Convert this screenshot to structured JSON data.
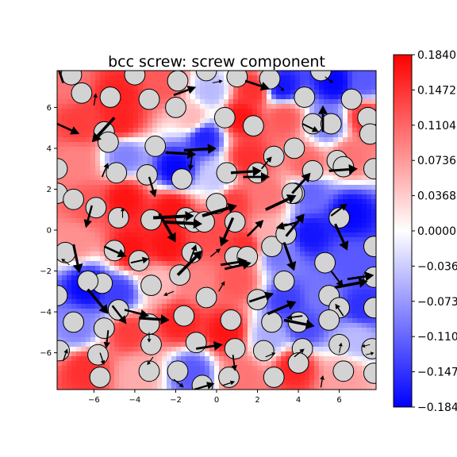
{
  "chart_data": {
    "type": "heatmap",
    "title": "bcc screw: screw component",
    "xlabel": "",
    "ylabel": "",
    "xlim": [
      -7.8,
      7.8
    ],
    "ylim": [
      -7.8,
      7.8
    ],
    "x_ticks": [
      -6,
      -4,
      -2,
      0,
      2,
      4,
      6
    ],
    "y_ticks": [
      -6,
      -4,
      -2,
      0,
      2,
      4,
      6
    ],
    "x_tick_labels": [
      "−6",
      "−4",
      "−2",
      "0",
      "2",
      "4",
      "6"
    ],
    "y_tick_labels": [
      "−6",
      "−4",
      "−2",
      "0",
      "2",
      "4",
      "6"
    ],
    "grid": false,
    "colormap": "bwr",
    "colorbar": {
      "vmin": -0.184,
      "vmax": 0.184,
      "ticks": [
        0.184,
        0.1472,
        0.1104,
        0.0736,
        0.0368,
        0.0,
        -0.0368,
        -0.0736,
        -0.1104,
        -0.1472,
        -0.184
      ],
      "tick_labels": [
        "0.1840",
        "0.1472",
        "0.1104",
        "0.0736",
        "0.0368",
        "0.0000",
        "−0.0368",
        "−0.0736",
        "−0.1104",
        "−0.1472",
        "−0.1840"
      ]
    },
    "atom_style": {
      "fill": "#d3d3d3",
      "stroke": "#000000",
      "radius": 0.5
    },
    "colors": {
      "arrow": "#000000",
      "neg": "#0000ff",
      "mid": "#ffffff",
      "pos": "#ff0000"
    },
    "field_samples": [
      [
        -7.3,
        7.2,
        0.1
      ],
      [
        -4.8,
        6.5,
        0.16
      ],
      [
        -2.5,
        7.2,
        0.12
      ],
      [
        -0.3,
        6.8,
        -0.05
      ],
      [
        1.8,
        6.8,
        0.15
      ],
      [
        3.2,
        7.0,
        -0.17
      ],
      [
        5.8,
        7.2,
        -0.18
      ],
      [
        7.2,
        7.3,
        -0.12
      ],
      [
        -6.7,
        5.2,
        0.14
      ],
      [
        -4.7,
        5.3,
        0.16
      ],
      [
        -1.2,
        5.5,
        0.05
      ],
      [
        1.2,
        5.5,
        0.17
      ],
      [
        3.3,
        5.5,
        0.12
      ],
      [
        5.5,
        5.2,
        -0.1
      ],
      [
        7.2,
        5.5,
        0.15
      ],
      [
        -6.9,
        3.3,
        0.09
      ],
      [
        -4.5,
        3.6,
        -0.09
      ],
      [
        -2.0,
        3.0,
        -0.18
      ],
      [
        -0.6,
        4.5,
        -0.16
      ],
      [
        1.5,
        3.5,
        0.15
      ],
      [
        4.4,
        3.2,
        0.11
      ],
      [
        6.5,
        3.6,
        0.1
      ],
      [
        -6.3,
        1.2,
        0.12
      ],
      [
        -4.5,
        1.5,
        0.17
      ],
      [
        -2.2,
        1.0,
        0.17
      ],
      [
        0.8,
        1.3,
        0.14
      ],
      [
        2.5,
        1.6,
        0.1
      ],
      [
        4.6,
        1.8,
        -0.11
      ],
      [
        6.5,
        0.8,
        -0.18
      ],
      [
        -6.9,
        -0.5,
        0.08
      ],
      [
        -4.2,
        -1.0,
        0.17
      ],
      [
        -2.4,
        -0.8,
        0.17
      ],
      [
        -0.4,
        -0.2,
        0.13
      ],
      [
        1.4,
        -0.8,
        0.15
      ],
      [
        3.0,
        -1.2,
        -0.1
      ],
      [
        4.6,
        -0.2,
        -0.17
      ],
      [
        6.6,
        -1.5,
        -0.12
      ],
      [
        -6.3,
        -2.8,
        -0.18
      ],
      [
        -4.8,
        -3.1,
        -0.14
      ],
      [
        -2.8,
        -2.5,
        0.05
      ],
      [
        -0.9,
        -2.6,
        0.09
      ],
      [
        1.0,
        -2.5,
        0.12
      ],
      [
        3.4,
        -3.5,
        -0.14
      ],
      [
        5.2,
        -3.2,
        -0.1
      ],
      [
        7.1,
        -3.8,
        -0.15
      ],
      [
        -6.8,
        -4.8,
        -0.09
      ],
      [
        -4.3,
        -5.0,
        0.14
      ],
      [
        -1.8,
        -4.5,
        0.16
      ],
      [
        0.5,
        -5.0,
        0.17
      ],
      [
        2.6,
        -5.2,
        -0.06
      ],
      [
        4.3,
        -4.8,
        -0.13
      ],
      [
        6.8,
        -5.3,
        -0.05
      ],
      [
        -6.4,
        -6.8,
        0.15
      ],
      [
        -3.8,
        -7.0,
        0.06
      ],
      [
        -1.2,
        -7.0,
        -0.12
      ],
      [
        1.2,
        -7.2,
        0.1
      ],
      [
        3.8,
        -6.7,
        0.16
      ],
      [
        6.3,
        -7.2,
        0.07
      ],
      [
        0.0,
        2.5,
        -0.04
      ],
      [
        2.5,
        -0.2,
        0.06
      ]
    ],
    "atoms": [
      [
        -7.1,
        7.6
      ],
      [
        -4.0,
        7.6
      ],
      [
        -1.9,
        7.3
      ],
      [
        -0.5,
        7.8
      ],
      [
        1.0,
        7.5
      ],
      [
        2.6,
        7.4
      ],
      [
        5.1,
        7.8
      ],
      [
        -6.6,
        6.7
      ],
      [
        -5.2,
        6.5
      ],
      [
        -3.3,
        6.4
      ],
      [
        -2.0,
        6.0
      ],
      [
        4.3,
        6.5
      ],
      [
        6.6,
        6.4
      ],
      [
        7.4,
        5.5
      ],
      [
        -5.5,
        4.8
      ],
      [
        -5.3,
        4.3
      ],
      [
        -3.0,
        4.1
      ],
      [
        0.4,
        5.5
      ],
      [
        1.8,
        5.1
      ],
      [
        3.8,
        4.0
      ],
      [
        4.7,
        5.2
      ],
      [
        5.6,
        5.2
      ],
      [
        7.5,
        4.7
      ],
      [
        -7.8,
        3.0
      ],
      [
        -4.9,
        2.8
      ],
      [
        -3.4,
        2.7
      ],
      [
        -1.7,
        2.5
      ],
      [
        0.5,
        2.8
      ],
      [
        2.0,
        2.8
      ],
      [
        2.8,
        3.6
      ],
      [
        4.7,
        2.9
      ],
      [
        5.9,
        3.4
      ],
      [
        6.2,
        3.1
      ],
      [
        7.7,
        3.0
      ],
      [
        -7.8,
        1.8
      ],
      [
        -7.0,
        1.5
      ],
      [
        -5.9,
        1.1
      ],
      [
        -4.8,
        0.6
      ],
      [
        -3.2,
        0.5
      ],
      [
        -1.5,
        0.6
      ],
      [
        -1.1,
        0.4
      ],
      [
        -0.6,
        0.4
      ],
      [
        0.0,
        1.3
      ],
      [
        0.9,
        0.4
      ],
      [
        2.7,
        -0.8
      ],
      [
        3.4,
        -0.2
      ],
      [
        3.8,
        1.8
      ],
      [
        3.7,
        1.8
      ],
      [
        6.0,
        0.6
      ],
      [
        7.7,
        -0.8
      ],
      [
        -7.4,
        -1.1
      ],
      [
        -5.0,
        -1.0
      ],
      [
        -3.8,
        -1.5
      ],
      [
        -1.2,
        -1.1
      ],
      [
        -1.8,
        -2.2
      ],
      [
        -3.2,
        -2.7
      ],
      [
        -5.6,
        -2.6
      ],
      [
        -6.3,
        -2.5
      ],
      [
        0.9,
        -1.3
      ],
      [
        1.5,
        -1.3
      ],
      [
        5.3,
        -1.6
      ],
      [
        7.7,
        -2.3
      ],
      [
        -7.8,
        -3.2
      ],
      [
        -4.8,
        -3.9
      ],
      [
        -7.0,
        -4.5
      ],
      [
        -1.6,
        -4.2
      ],
      [
        -0.5,
        -3.3
      ],
      [
        0.7,
        -4.4
      ],
      [
        2.0,
        -3.4
      ],
      [
        3.3,
        -2.5
      ],
      [
        5.5,
        -3.2
      ],
      [
        6.0,
        -3.8
      ],
      [
        2.7,
        -4.5
      ],
      [
        4.0,
        -4.5
      ],
      [
        5.5,
        -4.4
      ],
      [
        7.7,
        -3.8
      ],
      [
        -5.5,
        -4.8
      ],
      [
        -3.3,
        -4.6
      ],
      [
        -3.2,
        -5.6
      ],
      [
        -1.0,
        -5.5
      ],
      [
        0.9,
        -5.8
      ],
      [
        2.3,
        -5.9
      ],
      [
        4.2,
        -5.8
      ],
      [
        6.0,
        -5.6
      ],
      [
        7.6,
        -5.8
      ],
      [
        -5.8,
        -6.1
      ],
      [
        -7.7,
        -5.9
      ],
      [
        -3.3,
        -6.9
      ],
      [
        -1.9,
        -6.9
      ],
      [
        -0.7,
        -7.6
      ],
      [
        0.6,
        -7.2
      ],
      [
        2.8,
        -7.2
      ],
      [
        4.0,
        -6.5
      ],
      [
        6.2,
        -6.9
      ],
      [
        -5.7,
        -7.2
      ],
      [
        7.7,
        -7.0
      ]
    ],
    "arrows": [
      [
        -7.5,
        7.2,
        -0.4,
        1.2
      ],
      [
        -6.0,
        6.1,
        0.1,
        0.6
      ],
      [
        -2.1,
        6.6,
        1.1,
        0.4
      ],
      [
        -0.2,
        7.2,
        0.5,
        0.1
      ],
      [
        1.4,
        7.3,
        1.2,
        -0.4
      ],
      [
        3.0,
        7.1,
        0.3,
        -0.3
      ],
      [
        5.3,
        7.5,
        0.4,
        -0.3
      ],
      [
        -7.8,
        5.2,
        1.1,
        -0.5
      ],
      [
        -5.0,
        5.5,
        -1.1,
        -1.2
      ],
      [
        -2.5,
        3.8,
        1.5,
        -0.1
      ],
      [
        -1.6,
        3.9,
        1.6,
        0.1
      ],
      [
        -1.2,
        3.7,
        -0.1,
        -0.8
      ],
      [
        0.7,
        2.8,
        1.5,
        0.1
      ],
      [
        1.3,
        2.6,
        1.3,
        0.0
      ],
      [
        2.2,
        3.0,
        0.5,
        0.6
      ],
      [
        3.7,
        1.8,
        0.9,
        1.0
      ],
      [
        5.2,
        4.8,
        0.0,
        1.3
      ],
      [
        5.5,
        2.9,
        1.4,
        0.1
      ],
      [
        4.2,
        5.2,
        0.8,
        -0.4
      ],
      [
        -5.6,
        2.6,
        0.3,
        0.7
      ],
      [
        -3.3,
        2.6,
        0.3,
        -1.0
      ],
      [
        -2.8,
        0.8,
        0.8,
        -1.4
      ],
      [
        -3.1,
        0.6,
        2.0,
        0.1
      ],
      [
        -2.6,
        0.4,
        1.9,
        -0.1
      ],
      [
        -0.7,
        0.7,
        1.7,
        0.5
      ],
      [
        0.8,
        0.6,
        -0.6,
        -1.4
      ],
      [
        1.5,
        -0.3,
        0.8,
        0.8
      ],
      [
        2.4,
        1.0,
        1.5,
        0.7
      ],
      [
        4.0,
        0.4,
        -1.1,
        -0.3
      ],
      [
        5.6,
        0.7,
        0.8,
        0.6
      ],
      [
        5.8,
        0.3,
        0.6,
        -1.3
      ],
      [
        -6.1,
        1.2,
        -0.3,
        -1.1
      ],
      [
        -4.6,
        0.6,
        0.0,
        0.5
      ],
      [
        -7.0,
        -0.7,
        0.3,
        -1.4
      ],
      [
        -5.5,
        -0.8,
        1.1,
        -0.5
      ],
      [
        -4.2,
        -1.6,
        0.9,
        0.2
      ],
      [
        -1.9,
        -2.2,
        1.2,
        1.2
      ],
      [
        -1.3,
        -1.5,
        0.3,
        0.8
      ],
      [
        -0.3,
        -1.3,
        0.5,
        0.4
      ],
      [
        0.2,
        -1.7,
        1.3,
        0.2
      ],
      [
        0.4,
        -1.9,
        1.3,
        0.3
      ],
      [
        3.3,
        -0.6,
        0.5,
        -1.4
      ],
      [
        3.4,
        -0.3,
        0.9,
        1.1
      ],
      [
        5.6,
        -2.0,
        0.6,
        -0.8
      ],
      [
        5.8,
        -2.8,
        1.6,
        0.3
      ],
      [
        6.4,
        -2.4,
        1.3,
        0.2
      ],
      [
        -7.2,
        -1.7,
        -0.4,
        0.3
      ],
      [
        -6.3,
        -2.9,
        1.0,
        -1.2
      ],
      [
        -5.1,
        -3.7,
        0.7,
        -0.9
      ],
      [
        -4.5,
        -3.9,
        1.2,
        -0.3
      ],
      [
        -3.8,
        -4.3,
        1.5,
        -0.1
      ],
      [
        -3.3,
        -5.0,
        0.0,
        -0.5
      ],
      [
        -2.1,
        -3.0,
        -0.5,
        -0.2
      ],
      [
        0.1,
        -3.0,
        0.3,
        0.5
      ],
      [
        1.6,
        -3.5,
        1.2,
        0.4
      ],
      [
        2.5,
        -4.1,
        1.4,
        0.6
      ],
      [
        3.3,
        -4.4,
        1.5,
        -0.3
      ],
      [
        4.2,
        -4.2,
        -0.8,
        -0.1
      ],
      [
        6.2,
        -4.2,
        -0.4,
        0.6
      ],
      [
        -5.3,
        -4.9,
        -0.1,
        -0.9
      ],
      [
        -5.7,
        -6.0,
        0.2,
        -0.6
      ],
      [
        -7.5,
        -6.4,
        0.2,
        0.6
      ],
      [
        -3.1,
        -6.2,
        -0.3,
        -0.4
      ],
      [
        -1.0,
        -5.8,
        1.3,
        0.2
      ],
      [
        0.8,
        -6.1,
        0.1,
        -0.8
      ],
      [
        2.4,
        -6.2,
        0.5,
        0.2
      ],
      [
        3.8,
        -6.2,
        0.5,
        0.4
      ],
      [
        6.0,
        -6.0,
        0.1,
        0.5
      ],
      [
        7.3,
        -6.1,
        0.4,
        0.1
      ],
      [
        -2.1,
        -7.3,
        0.5,
        -0.4
      ],
      [
        -1.1,
        -7.8,
        1.0,
        0.3
      ],
      [
        0.3,
        -7.6,
        0.6,
        0.2
      ],
      [
        5.1,
        -7.7,
        0.1,
        0.6
      ],
      [
        7.5,
        -5.6,
        -0.4,
        -0.1
      ]
    ]
  }
}
